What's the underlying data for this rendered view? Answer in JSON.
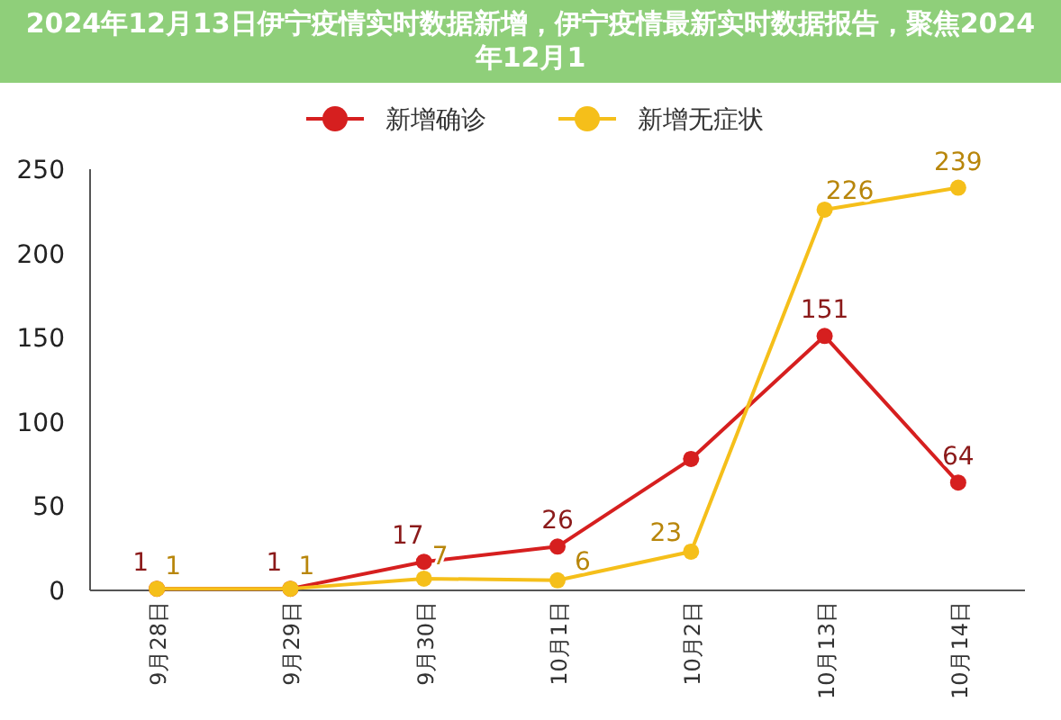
{
  "chart_data": {
    "type": "line",
    "title": "2024年12月13日伊宁疫情实时数据新增，伊宁疫情最新实时数据报告，聚焦2024年12月1",
    "categories": [
      "9月28日",
      "9月29日",
      "9月30日",
      "10月1日",
      "10月2日",
      "10月13日",
      "10月14日"
    ],
    "series": [
      {
        "name": "新增确诊",
        "color": "#d61f1f",
        "values": [
          1,
          1,
          17,
          26,
          78,
          151,
          64
        ],
        "value_labels": [
          "1",
          "1",
          "17",
          "26",
          null,
          "151",
          "64"
        ]
      },
      {
        "name": "新增无症状",
        "color": "#f5bf1a",
        "values": [
          1,
          1,
          7,
          6,
          23,
          226,
          239
        ],
        "value_labels": [
          "1",
          "1",
          "7",
          "6",
          "23",
          "226",
          "239"
        ]
      }
    ],
    "ylim": [
      0,
      250
    ],
    "yticks": [
      0,
      50,
      100,
      150,
      200,
      250
    ],
    "grid": false,
    "legend": "top",
    "marker": "circle",
    "line_style": "solid"
  }
}
